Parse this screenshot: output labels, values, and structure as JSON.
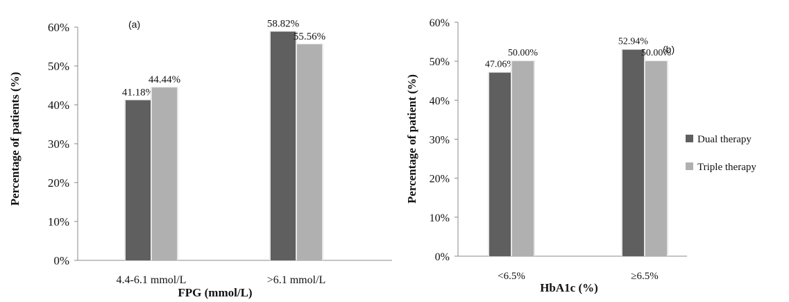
{
  "chart_data": [
    {
      "type": "bar",
      "panel_label": "(a)",
      "categories": [
        "4.4-6.1 mmol/L",
        ">6.1 mmol/L"
      ],
      "series": [
        {
          "name": "Dual therapy",
          "values": [
            41.18,
            58.82
          ],
          "labels": [
            "41.18%",
            "58.82%"
          ]
        },
        {
          "name": "Triple therapy",
          "values": [
            44.44,
            55.56
          ],
          "labels": [
            "44.44%",
            "55.56%"
          ]
        }
      ],
      "xlabel": "FPG (mmol/L)",
      "ylabel": "Percentage of patients (%)",
      "ylim": [
        0,
        60
      ],
      "yticks": [
        "0%",
        "10%",
        "20%",
        "30%",
        "40%",
        "50%",
        "60%"
      ],
      "grid": false
    },
    {
      "type": "bar",
      "panel_label": "(b)",
      "categories": [
        "<6.5%",
        "≥6.5%"
      ],
      "series": [
        {
          "name": "Dual therapy",
          "values": [
            47.06,
            52.94
          ],
          "labels": [
            "47.06%",
            "52.94%"
          ]
        },
        {
          "name": "Triple therapy",
          "values": [
            50.0,
            50.0
          ],
          "labels": [
            "50.00%",
            "50.00%"
          ]
        }
      ],
      "xlabel": "HbA1c (%)",
      "ylabel": "Percentage of patient (%)",
      "ylim": [
        0,
        60
      ],
      "yticks": [
        "0%",
        "10%",
        "20%",
        "30%",
        "40%",
        "50%",
        "60%"
      ],
      "grid": false
    }
  ],
  "legend": {
    "position": "right",
    "items": [
      {
        "name": "Dual therapy",
        "color": "#5f5f5f"
      },
      {
        "name": "Triple therapy",
        "color": "#b0b0b0"
      }
    ]
  },
  "colors": {
    "dual": "#5f5f5f",
    "triple": "#b0b0b0",
    "axis": "#888888"
  }
}
